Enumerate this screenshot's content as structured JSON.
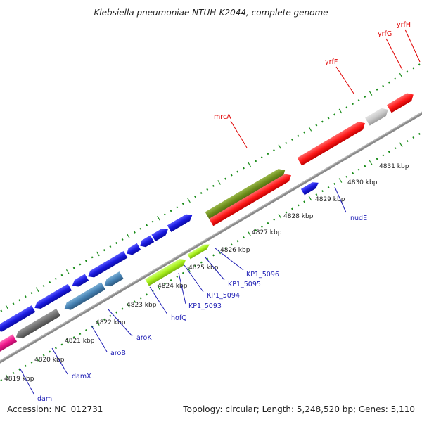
{
  "title": "Klebsiella pneumoniae NTUH-K2044, complete genome",
  "footer": {
    "accession": "Accession: NC_012731",
    "summary": "Topology: circular; Length: 5,248,520 bp; Genes: 5,110"
  },
  "colors": {
    "backbone": "#8a8a8a",
    "tick": "#1a8c1a",
    "red_gene": "#ff1a1a",
    "blue_gene": "#1a1ae0",
    "olive_gene": "#6b8c1a",
    "lime_gene": "#a8f01a",
    "steel_gene": "#4682b4",
    "gray_gene": "#707070",
    "silver_gene": "#c8c8c8",
    "magenta_gene": "#f0188c"
  },
  "scale_labels": [
    "4819 kbp",
    "4820 kbp",
    "4821 kbp",
    "4822 kbp",
    "4823 kbp",
    "4824 kbp",
    "4825 kbp",
    "4826 kbp",
    "4827 kbp",
    "4828 kbp",
    "4829 kbp",
    "4830 kbp",
    "4831 kbp"
  ],
  "top_gene_labels": [
    "mrcA",
    "yrfF",
    "yrfG",
    "yrfH"
  ],
  "bottom_gene_labels": [
    "dam",
    "damX",
    "aroB",
    "aroK",
    "hofQ",
    "KP1_5093",
    "KP1_5094",
    "KP1_5095",
    "KP1_5096",
    "nudE"
  ]
}
